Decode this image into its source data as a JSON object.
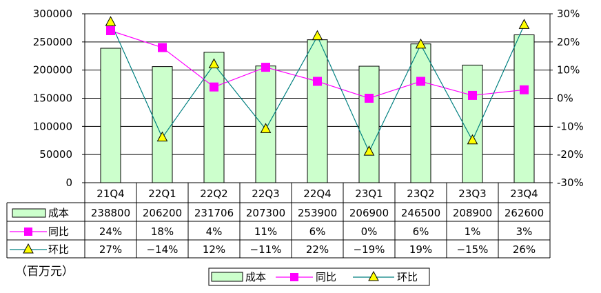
{
  "chart_data": {
    "type": "bar",
    "categories": [
      "21Q4",
      "22Q1",
      "22Q2",
      "22Q3",
      "22Q4",
      "23Q1",
      "23Q2",
      "23Q3",
      "23Q4"
    ],
    "series": [
      {
        "name": "成本",
        "type": "bar",
        "axis": "left",
        "values": [
          238800,
          206200,
          231706,
          207300,
          253900,
          206900,
          246500,
          208900,
          262600
        ],
        "labels": [
          "238800",
          "206200",
          "231706",
          "207300",
          "253900",
          "206900",
          "246500",
          "208900",
          "262600"
        ]
      },
      {
        "name": "同比",
        "type": "line",
        "axis": "right",
        "marker": "square",
        "values": [
          24,
          18,
          4,
          11,
          6,
          0,
          6,
          1,
          3
        ],
        "labels": [
          "24%",
          "18%",
          "4%",
          "11%",
          "6%",
          "0%",
          "6%",
          "1%",
          "3%"
        ]
      },
      {
        "name": "环比",
        "type": "line",
        "axis": "right",
        "marker": "triangle",
        "values": [
          27,
          -14,
          12,
          -11,
          22,
          -19,
          19,
          -15,
          26
        ],
        "labels": [
          "27%",
          "−14%",
          "12%",
          "−11%",
          "22%",
          "−19%",
          "19%",
          "−15%",
          "26%"
        ]
      }
    ],
    "y_left": {
      "min": 0,
      "max": 300000,
      "step": 50000,
      "ticks": [
        "0",
        "50000",
        "100000",
        "150000",
        "200000",
        "250000",
        "300000"
      ]
    },
    "y_right": {
      "min": -30,
      "max": 30,
      "step": 10,
      "ticks": [
        "-30%",
        "-20%",
        "-10%",
        "0%",
        "10%",
        "20%",
        "30%"
      ]
    },
    "unit_label": "（百万元）",
    "grid": true,
    "legend_position": "bottom",
    "data_table": true,
    "colors": {
      "bar_fill": "#ccffcc",
      "bar_stroke": "#000000",
      "yoy": "#ff00ff",
      "qoq_line": "#008080",
      "qoq_marker": "#ffff00"
    }
  }
}
